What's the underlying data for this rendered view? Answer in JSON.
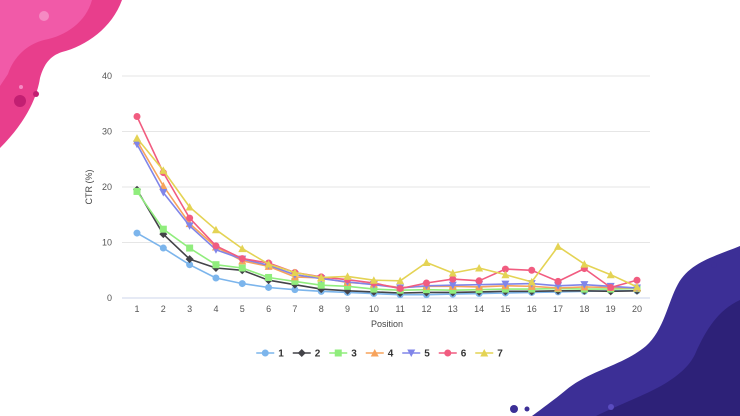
{
  "chart_data": {
    "type": "line",
    "title": "",
    "xlabel": "Position",
    "ylabel": "CTR (%)",
    "ylim": [
      0,
      40
    ],
    "yticks": [
      0,
      10,
      20,
      30,
      40
    ],
    "x": [
      1,
      2,
      3,
      4,
      5,
      6,
      7,
      8,
      9,
      10,
      11,
      12,
      13,
      14,
      15,
      16,
      17,
      18,
      19,
      20
    ],
    "grid": true,
    "legend_position": "bottom",
    "series": [
      {
        "name": "1",
        "color": "#7cb5ec",
        "marker": "circle",
        "values": [
          11.7,
          9.0,
          6.0,
          3.6,
          2.6,
          1.9,
          1.5,
          1.2,
          1.0,
          0.8,
          0.6,
          0.6,
          0.7,
          0.8,
          0.9,
          1.0,
          1.1,
          1.2,
          1.3,
          1.3
        ]
      },
      {
        "name": "2",
        "color": "#434348",
        "marker": "diamond",
        "values": [
          19.5,
          11.5,
          7.0,
          5.4,
          5.0,
          3.2,
          2.4,
          1.6,
          1.3,
          1.1,
          0.9,
          1.0,
          1.0,
          1.1,
          1.2,
          1.2,
          1.3,
          1.3,
          1.2,
          1.3
        ]
      },
      {
        "name": "3",
        "color": "#90ed7d",
        "marker": "square",
        "values": [
          19.2,
          12.4,
          9.0,
          6.0,
          5.4,
          3.7,
          3.0,
          2.3,
          2.1,
          1.6,
          1.4,
          1.5,
          1.4,
          1.5,
          1.6,
          1.6,
          1.7,
          1.6,
          1.6,
          1.7
        ]
      },
      {
        "name": "4",
        "color": "#f7a35c",
        "marker": "triangle",
        "values": [
          28.3,
          20.2,
          13.4,
          9.2,
          6.7,
          5.7,
          3.8,
          3.6,
          2.8,
          2.5,
          1.9,
          2.1,
          2.1,
          2.0,
          2.2,
          2.1,
          1.8,
          2.0,
          1.9,
          1.8
        ]
      },
      {
        "name": "5",
        "color": "#8085e9",
        "marker": "triangle-down",
        "values": [
          27.7,
          19.0,
          13.0,
          8.7,
          7.0,
          5.9,
          4.2,
          3.5,
          2.9,
          2.4,
          1.8,
          2.2,
          2.3,
          2.4,
          2.5,
          2.6,
          2.2,
          2.4,
          2.1,
          1.8
        ]
      },
      {
        "name": "6",
        "color": "#f15c80",
        "marker": "circle",
        "values": [
          32.7,
          22.6,
          14.4,
          9.4,
          7.1,
          6.3,
          4.6,
          3.8,
          3.3,
          2.7,
          1.7,
          2.7,
          3.4,
          3.1,
          5.2,
          5.0,
          3.0,
          5.3,
          1.9,
          3.2
        ]
      },
      {
        "name": "7",
        "color": "#e4d354",
        "marker": "triangle",
        "values": [
          28.8,
          23.0,
          16.4,
          12.3,
          8.9,
          6.1,
          4.6,
          3.7,
          3.9,
          3.2,
          3.1,
          6.4,
          4.5,
          5.4,
          4.2,
          2.9,
          9.3,
          6.1,
          4.2,
          2.0
        ]
      }
    ]
  }
}
